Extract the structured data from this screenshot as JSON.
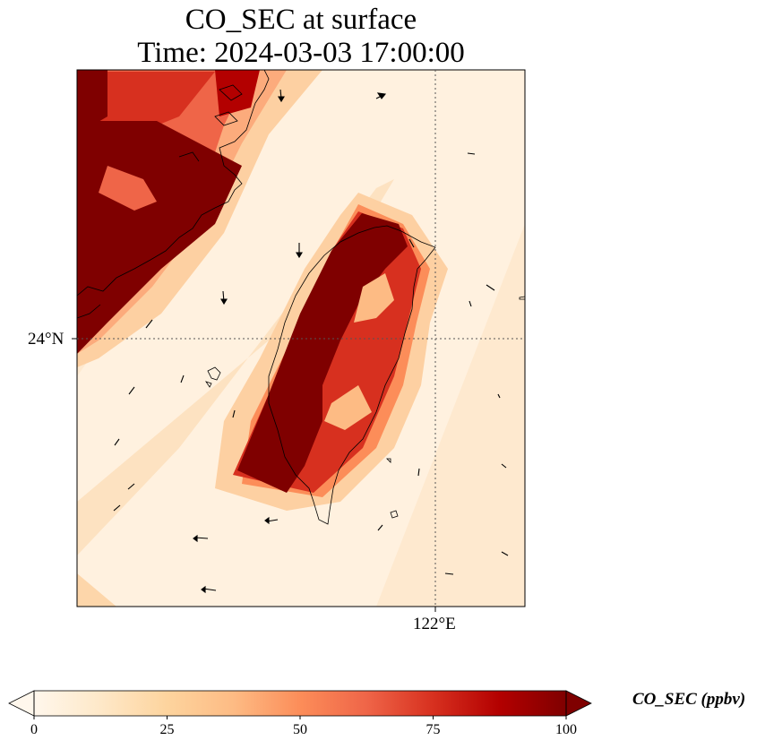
{
  "title": {
    "line1": "CO_SEC at surface",
    "line2": "Time: 2024-03-03 17:00:00"
  },
  "axes": {
    "lat_tick_label": "24°N",
    "lon_tick_label": "122°E",
    "gridlines": "dotted"
  },
  "colorbar": {
    "label": "CO_SEC (ppbv)",
    "ticks": [
      "0",
      "25",
      "50",
      "75",
      "100"
    ],
    "range": [
      0,
      100
    ],
    "extend": "both",
    "colormap": "OrRd",
    "colors": [
      "#fff7ec",
      "#fee8c8",
      "#fdd49e",
      "#fdbb84",
      "#fc8d59",
      "#ef6548",
      "#d7301f",
      "#b30000",
      "#7f0000"
    ]
  },
  "map_features": {
    "coastlines": [
      "Taiwan",
      "China coast",
      "Penghu Islands"
    ],
    "wind_vectors": "arrows",
    "plume": "High CO_SEC over western Taiwan and along the China coast to the northwest"
  }
}
